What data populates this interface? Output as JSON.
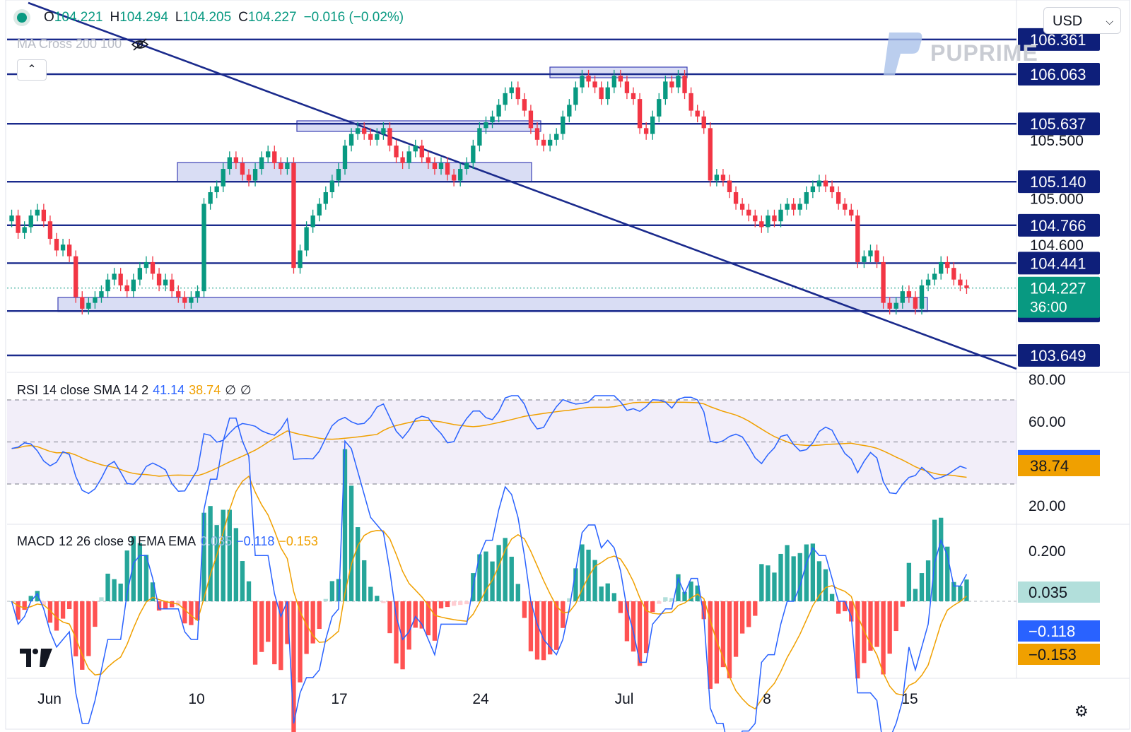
{
  "header": {
    "ohlc": [
      {
        "k": "O",
        "v": "104.221"
      },
      {
        "k": "H",
        "v": "104.294"
      },
      {
        "k": "L",
        "v": "104.205"
      },
      {
        "k": "C",
        "v": "104.227"
      }
    ],
    "change": "−0.016 (−0.02%)",
    "ma_label": "MA Cross 200 100",
    "currency": "USD",
    "brand": "PUPRIME"
  },
  "price_axis": {
    "ticks": [
      "105.500",
      "105.000",
      "104.600"
    ],
    "levels": [
      {
        "value": "106.361",
        "price": 106.361
      },
      {
        "value": "106.063",
        "price": 106.063
      },
      {
        "value": "105.637",
        "price": 105.637
      },
      {
        "value": "105.140",
        "price": 105.14
      },
      {
        "value": "104.766",
        "price": 104.766
      },
      {
        "value": "104.441",
        "price": 104.441
      },
      {
        "value": "104.030",
        "price": 104.03
      },
      {
        "value": "103.649",
        "price": 103.649
      }
    ],
    "current_price": "104.227",
    "countdown": "36:00"
  },
  "rsi": {
    "label": "RSI",
    "params": "14 close SMA 14 2",
    "value": "41.14",
    "sma_value": "38.74",
    "ticks": [
      "80.00",
      "60.00",
      "20.00"
    ]
  },
  "macd": {
    "label": "MACD",
    "params": "12 26 close 9 EMA EMA",
    "hist_value": "0.035",
    "macd_value": "−0.118",
    "signal_value": "−0.153",
    "ticks": [
      "0.200"
    ]
  },
  "time_axis": [
    "Jun",
    "10",
    "17",
    "24",
    "Jul",
    "8",
    "15"
  ],
  "colors": {
    "up": "#089981",
    "down": "#f23645",
    "level_line": "#1a2a8c",
    "level_label_bg": "#0e1f7a",
    "zone_fill": "#c9cff0",
    "zone_stroke": "#3b3fb5",
    "rsi_line": "#2962ff",
    "rsi_sma": "#f0a000",
    "current_price_bg": "#089981"
  },
  "chart_data": {
    "type": "candlestick",
    "price_levels": [
      106.361,
      106.063,
      105.637,
      105.14,
      104.766,
      104.441,
      104.03,
      103.649
    ],
    "closes": [
      104.85,
      104.7,
      104.75,
      104.85,
      104.9,
      104.8,
      104.65,
      104.55,
      104.6,
      104.5,
      104.15,
      104.05,
      104.1,
      104.15,
      104.2,
      104.3,
      104.35,
      104.25,
      104.2,
      104.3,
      104.4,
      104.45,
      104.35,
      104.25,
      104.3,
      104.2,
      104.15,
      104.1,
      104.15,
      104.2,
      104.95,
      105.05,
      105.1,
      105.25,
      105.35,
      105.3,
      105.2,
      105.15,
      105.25,
      105.35,
      105.4,
      105.3,
      105.25,
      105.3,
      104.4,
      104.55,
      104.75,
      104.85,
      104.95,
      105.05,
      105.15,
      105.25,
      105.45,
      105.55,
      105.6,
      105.55,
      105.5,
      105.55,
      105.6,
      105.45,
      105.35,
      105.3,
      105.4,
      105.45,
      105.35,
      105.3,
      105.25,
      105.3,
      105.2,
      105.15,
      105.25,
      105.3,
      105.45,
      105.6,
      105.65,
      105.7,
      105.8,
      105.9,
      105.95,
      105.85,
      105.75,
      105.6,
      105.5,
      105.45,
      105.5,
      105.55,
      105.7,
      105.8,
      105.95,
      106.05,
      106.0,
      105.95,
      105.85,
      105.95,
      106.05,
      106.0,
      105.9,
      105.85,
      105.6,
      105.55,
      105.7,
      105.85,
      106.0,
      105.95,
      106.05,
      105.9,
      105.75,
      105.7,
      105.6,
      105.15,
      105.2,
      105.15,
      105.05,
      104.95,
      104.9,
      104.85,
      104.8,
      104.75,
      104.85,
      104.8,
      104.9,
      104.95,
      104.9,
      104.95,
      105.05,
      105.1,
      105.15,
      105.1,
      105.05,
      104.95,
      104.9,
      104.85,
      104.45,
      104.5,
      104.55,
      104.45,
      104.1,
      104.05,
      104.1,
      104.2,
      104.15,
      104.05,
      104.25,
      104.3,
      104.35,
      104.45,
      104.4,
      104.3,
      104.25,
      104.227
    ]
  }
}
